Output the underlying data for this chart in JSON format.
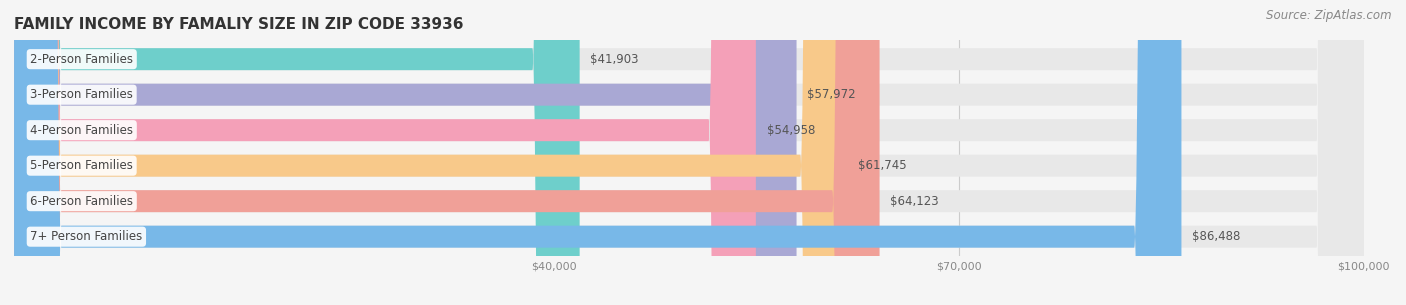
{
  "title": "FAMILY INCOME BY FAMALIY SIZE IN ZIP CODE 33936",
  "source": "Source: ZipAtlas.com",
  "categories": [
    "2-Person Families",
    "3-Person Families",
    "4-Person Families",
    "5-Person Families",
    "6-Person Families",
    "7+ Person Families"
  ],
  "values": [
    41903,
    57972,
    54958,
    61745,
    64123,
    86488
  ],
  "bar_colors": [
    "#6ecfcb",
    "#a9a8d4",
    "#f4a0b8",
    "#f8c98a",
    "#f0a098",
    "#78b8e8"
  ],
  "value_labels": [
    "$41,903",
    "$57,972",
    "$54,958",
    "$61,745",
    "$64,123",
    "$86,488"
  ],
  "xlim_min": 0,
  "xlim_max": 100000,
  "xticks": [
    40000,
    70000,
    100000
  ],
  "xtick_labels": [
    "$40,000",
    "$70,000",
    "$100,000"
  ],
  "bar_height": 0.62,
  "background_color": "#f5f5f5",
  "title_fontsize": 11,
  "label_fontsize": 8.5,
  "value_fontsize": 8.5,
  "source_fontsize": 8.5,
  "tick_fontsize": 8
}
